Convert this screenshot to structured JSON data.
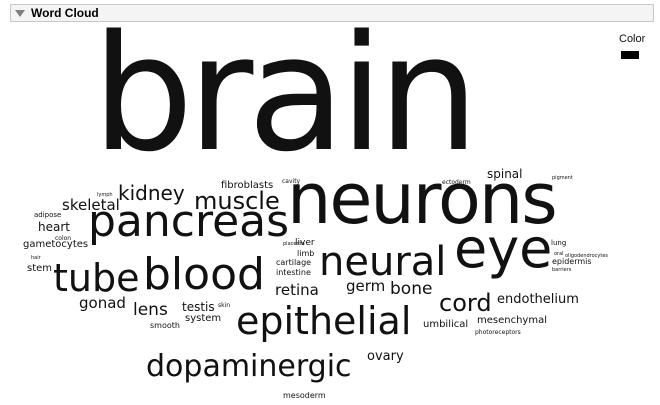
{
  "panel": {
    "title": "Word Cloud",
    "collapse_icon": "disclosure-triangle-down-icon"
  },
  "legend": {
    "title": "Color",
    "swatch_color": "#000000"
  },
  "words": [
    "brain",
    "neurons",
    "pancreas",
    "eye",
    "blood",
    "neural",
    "epithelial",
    "tube",
    "dopaminergic",
    "muscle",
    "kidney",
    "cord",
    "skeletal",
    "bone",
    "lens",
    "germ",
    "retina",
    "gonad",
    "endothelium",
    "ovary",
    "testis",
    "spinal",
    "heart",
    "system",
    "mesenchymal",
    "umbilical",
    "fibroblasts",
    "stem",
    "gametocytes",
    "liver",
    "limb",
    "cartilage",
    "intestine",
    "epidermis",
    "lung",
    "smooth",
    "mesoderm",
    "adipose",
    "colon",
    "skin",
    "cavity",
    "ectoderm",
    "photoreceptors",
    "oligodendrocytes",
    "barriers",
    "hair",
    "oral",
    "pigment",
    "placenta",
    "lymph"
  ]
}
